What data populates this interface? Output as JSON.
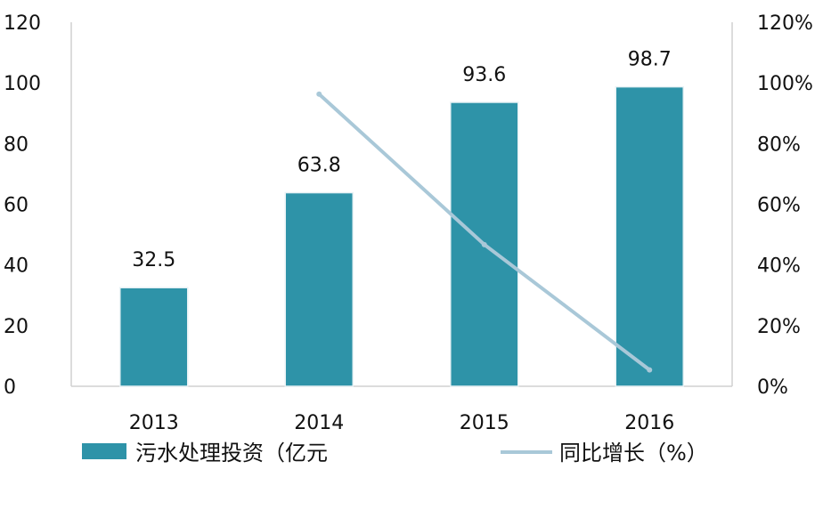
{
  "chart_data": {
    "type": "bar",
    "categories": [
      "2013",
      "2014",
      "2015",
      "2016"
    ],
    "series": [
      {
        "name": "污水处理投资（亿元",
        "type": "bar",
        "axis": "left",
        "values": [
          32.5,
          63.8,
          93.6,
          98.7
        ],
        "color": "#2e93a8"
      },
      {
        "name": "同比增长（%）",
        "type": "line",
        "axis": "right",
        "values": [
          null,
          96.3,
          46.7,
          5.4
        ],
        "color": "#a9c8d8"
      }
    ],
    "data_labels": [
      "32.5",
      "63.8",
      "93.6",
      "98.7"
    ],
    "y_left": {
      "range": [
        0,
        120
      ],
      "ticks": [
        "0",
        "20",
        "40",
        "60",
        "80",
        "100",
        "120"
      ]
    },
    "y_right": {
      "range": [
        0,
        120
      ],
      "ticks": [
        "0%",
        "20%",
        "40%",
        "60%",
        "80%",
        "100%",
        "120%"
      ]
    },
    "grid": false,
    "legend_position": "bottom"
  }
}
